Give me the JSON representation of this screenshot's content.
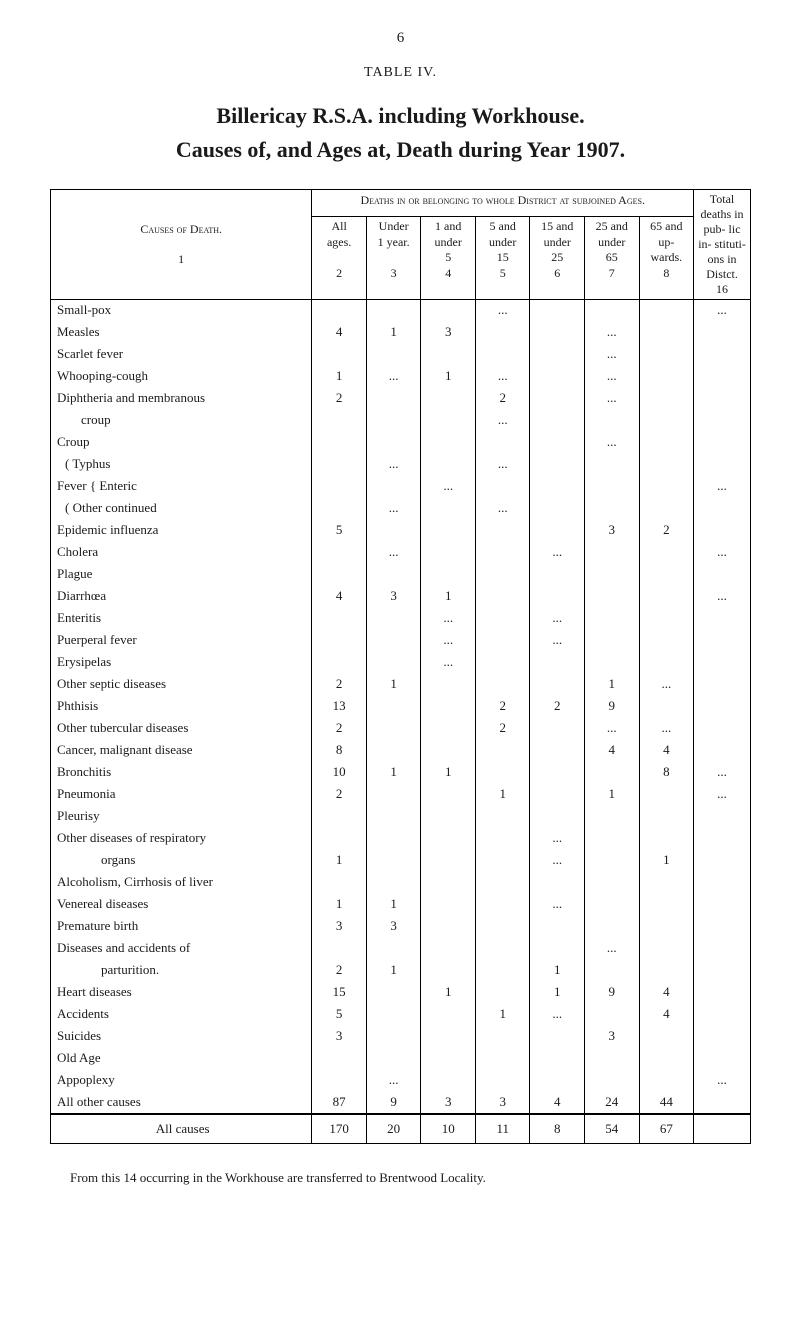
{
  "page_number": "6",
  "table_label": "TABLE IV.",
  "title_line1": "Billericay R.S.A. including Workhouse.",
  "title_line2": "Causes of, and Ages at, Death during Year 1907.",
  "causes_header": "Causes of Death.",
  "causes_index": "1",
  "group_header": "Deaths in or belonging to whole District at subjoined Ages.",
  "total_header": "Total deaths in pub- lic in- stituti- ons in Distct.",
  "age_cols": [
    {
      "l1": "All",
      "l2": "ages.",
      "l3": "",
      "idx": "2"
    },
    {
      "l1": "Under",
      "l2": "1 year.",
      "l3": "",
      "idx": "3"
    },
    {
      "l1": "1 and",
      "l2": "under",
      "l3": "5",
      "idx": "4"
    },
    {
      "l1": "5 and",
      "l2": "under",
      "l3": "15",
      "idx": "5"
    },
    {
      "l1": "15 and",
      "l2": "under",
      "l3": "25",
      "idx": "6"
    },
    {
      "l1": "25 and",
      "l2": "under",
      "l3": "65",
      "idx": "7"
    },
    {
      "l1": "65 and",
      "l2": "up-",
      "l3": "wards.",
      "idx": "8"
    }
  ],
  "total_col_idx": "16",
  "rows": [
    {
      "cause": "Small-pox",
      "indent": "",
      "v": [
        "",
        "",
        "",
        "...",
        "",
        "",
        "",
        "..."
      ]
    },
    {
      "cause": "Measles",
      "indent": "",
      "v": [
        "4",
        "1",
        "3",
        "",
        "",
        "...",
        "",
        ""
      ]
    },
    {
      "cause": "Scarlet fever",
      "indent": "",
      "v": [
        "",
        "",
        "",
        "",
        "",
        "...",
        "",
        ""
      ]
    },
    {
      "cause": "Whooping-cough",
      "indent": "",
      "v": [
        "1",
        "...",
        "1",
        "...",
        "",
        "...",
        "",
        ""
      ]
    },
    {
      "cause": "Diphtheria and membranous",
      "indent": "",
      "v": [
        "2",
        "",
        "",
        "2",
        "",
        "...",
        "",
        ""
      ]
    },
    {
      "cause": "croup",
      "indent": "indent1",
      "v": [
        "",
        "",
        "",
        "...",
        "",
        "",
        "",
        ""
      ]
    },
    {
      "cause": "Croup",
      "indent": "",
      "v": [
        "",
        "",
        "",
        "",
        "",
        "...",
        "",
        ""
      ]
    },
    {
      "cause": "( Typhus",
      "indent": "fever-brace",
      "v": [
        "",
        "...",
        "",
        "...",
        "",
        "",
        "",
        ""
      ]
    },
    {
      "cause": "Fever { Enteric",
      "indent": "",
      "v": [
        "",
        "",
        "...",
        "",
        "",
        "",
        "",
        "..."
      ]
    },
    {
      "cause": "( Other continued",
      "indent": "fever-brace",
      "v": [
        "",
        "...",
        "",
        "...",
        "",
        "",
        "",
        ""
      ]
    },
    {
      "cause": "Epidemic influenza",
      "indent": "",
      "v": [
        "5",
        "",
        "",
        "",
        "",
        "3",
        "2",
        ""
      ]
    },
    {
      "cause": "Cholera",
      "indent": "",
      "v": [
        "",
        "...",
        "",
        "",
        "...",
        "",
        "",
        "..."
      ]
    },
    {
      "cause": "Plague",
      "indent": "",
      "v": [
        "",
        "",
        "",
        "",
        "",
        "",
        "",
        ""
      ]
    },
    {
      "cause": "Diarrhœa",
      "indent": "",
      "v": [
        "4",
        "3",
        "1",
        "",
        "",
        "",
        "",
        "..."
      ]
    },
    {
      "cause": "Enteritis",
      "indent": "",
      "v": [
        "",
        "",
        "...",
        "",
        "...",
        "",
        "",
        ""
      ]
    },
    {
      "cause": "Puerperal fever",
      "indent": "",
      "v": [
        "",
        "",
        "...",
        "",
        "...",
        "",
        "",
        ""
      ]
    },
    {
      "cause": "Erysipelas",
      "indent": "",
      "v": [
        "",
        "",
        "...",
        "",
        "",
        "",
        "",
        ""
      ]
    },
    {
      "cause": "Other septic diseases",
      "indent": "",
      "v": [
        "2",
        "1",
        "",
        "",
        "",
        "1",
        "...",
        ""
      ]
    },
    {
      "cause": "Phthisis",
      "indent": "",
      "v": [
        "13",
        "",
        "",
        "2",
        "2",
        "9",
        "",
        ""
      ]
    },
    {
      "cause": "Other tubercular diseases",
      "indent": "",
      "v": [
        "2",
        "",
        "",
        "2",
        "",
        "...",
        "...",
        ""
      ]
    },
    {
      "cause": "Cancer, malignant disease",
      "indent": "",
      "v": [
        "8",
        "",
        "",
        "",
        "",
        "4",
        "4",
        ""
      ]
    },
    {
      "cause": "Bronchitis",
      "indent": "",
      "v": [
        "10",
        "1",
        "1",
        "",
        "",
        "",
        "8",
        "..."
      ]
    },
    {
      "cause": "Pneumonia",
      "indent": "",
      "v": [
        "2",
        "",
        "",
        "1",
        "",
        "1",
        "",
        "..."
      ]
    },
    {
      "cause": "Pleurisy",
      "indent": "",
      "v": [
        "",
        "",
        "",
        "",
        "",
        "",
        "",
        ""
      ]
    },
    {
      "cause": "Other diseases of respiratory",
      "indent": "",
      "v": [
        "",
        "",
        "",
        "",
        "...",
        "",
        "",
        ""
      ]
    },
    {
      "cause": "organs",
      "indent": "indent2",
      "v": [
        "1",
        "",
        "",
        "",
        "...",
        "",
        "1",
        ""
      ]
    },
    {
      "cause": "Alcoholism, Cirrhosis of liver",
      "indent": "",
      "v": [
        "",
        "",
        "",
        "",
        "",
        "",
        "",
        ""
      ]
    },
    {
      "cause": "Venereal diseases",
      "indent": "",
      "v": [
        "1",
        "1",
        "",
        "",
        "...",
        "",
        "",
        ""
      ]
    },
    {
      "cause": "Premature birth",
      "indent": "",
      "v": [
        "3",
        "3",
        "",
        "",
        "",
        "",
        "",
        ""
      ]
    },
    {
      "cause": "Diseases and accidents of",
      "indent": "",
      "v": [
        "",
        "",
        "",
        "",
        "",
        "...",
        "",
        ""
      ]
    },
    {
      "cause": "parturition.",
      "indent": "indent2",
      "v": [
        "2",
        "1",
        "",
        "",
        "1",
        "",
        "",
        ""
      ]
    },
    {
      "cause": "Heart diseases",
      "indent": "",
      "v": [
        "15",
        "",
        "1",
        "",
        "1",
        "9",
        "4",
        ""
      ]
    },
    {
      "cause": "Accidents",
      "indent": "",
      "v": [
        "5",
        "",
        "",
        "1",
        "...",
        "",
        "4",
        ""
      ]
    },
    {
      "cause": "Suicides",
      "indent": "",
      "v": [
        "3",
        "",
        "",
        "",
        "",
        "3",
        "",
        ""
      ]
    },
    {
      "cause": "Old Age",
      "indent": "",
      "v": [
        "",
        "",
        "",
        "",
        "",
        "",
        "",
        ""
      ]
    },
    {
      "cause": "Appoplexy",
      "indent": "",
      "v": [
        "",
        "...",
        "",
        "",
        "",
        "",
        "",
        "..."
      ]
    },
    {
      "cause": "All other causes",
      "indent": "",
      "v": [
        "87",
        "9",
        "3",
        "3",
        "4",
        "24",
        "44",
        ""
      ]
    }
  ],
  "totals": {
    "label": "All causes",
    "v": [
      "170",
      "20",
      "10",
      "11",
      "8",
      "54",
      "67",
      ""
    ]
  },
  "footnote": "From this 14 occurring in the Workhouse are transferred to Brentwood Locality."
}
